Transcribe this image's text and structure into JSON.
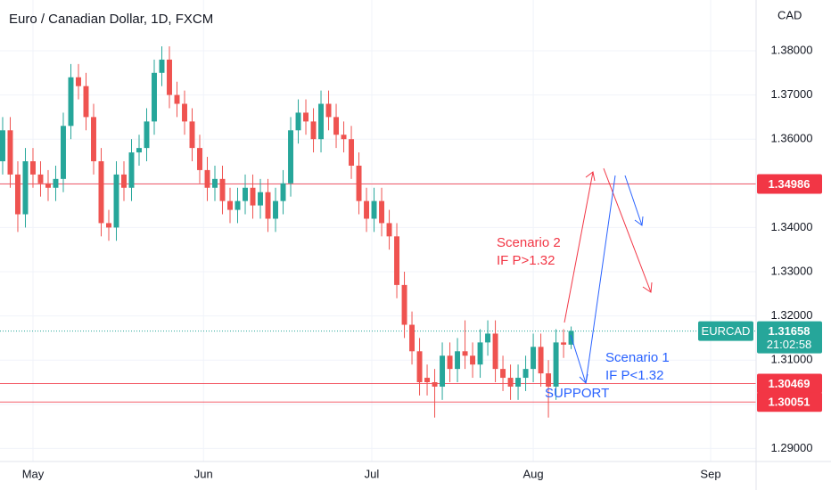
{
  "chart_data": {
    "type": "candlestick",
    "title": "Euro / Canadian Dollar, 1D, FXCM",
    "y_axis_label": "CAD",
    "up_color": "#26a69a",
    "down_color": "#ef5350",
    "grid": true,
    "xlim": [
      -0.35,
      99.4
    ],
    "xticks": [
      {
        "value": 4.0,
        "label": "May"
      },
      {
        "value": 26.5,
        "label": "Jun"
      },
      {
        "value": 48.7,
        "label": "Jul"
      },
      {
        "value": 70.0,
        "label": "Aug"
      },
      {
        "value": 93.4,
        "label": "Sep"
      }
    ],
    "ylim": [
      1.28706,
      1.39149
    ],
    "yticks": [
      {
        "value": 1.29,
        "label": "1.29000"
      },
      {
        "value": 1.3,
        "label": "1.30000"
      },
      {
        "value": 1.31,
        "label": "1.31000"
      },
      {
        "value": 1.32,
        "label": "1.32000"
      },
      {
        "value": 1.33,
        "label": "1.33000"
      },
      {
        "value": 1.34,
        "label": "1.34000"
      },
      {
        "value": 1.35,
        "label": "1.35000"
      },
      {
        "value": 1.36,
        "label": "1.36000"
      },
      {
        "value": 1.37,
        "label": "1.37000"
      },
      {
        "value": 1.38,
        "label": "1.38000"
      }
    ],
    "x": [
      0,
      1,
      2,
      3,
      4,
      5,
      6,
      7,
      8,
      9,
      10,
      11,
      12,
      13,
      14,
      15,
      16,
      17,
      18,
      19,
      20,
      21,
      22,
      23,
      24,
      25,
      26,
      27,
      28,
      29,
      30,
      31,
      32,
      33,
      34,
      35,
      36,
      37,
      38,
      39,
      40,
      41,
      42,
      43,
      44,
      45,
      46,
      47,
      48,
      49,
      50,
      51,
      52,
      53,
      54,
      55,
      56,
      57,
      58,
      59,
      60,
      61,
      62,
      63,
      64,
      65,
      66,
      67,
      68,
      69,
      70,
      71,
      72,
      73,
      74,
      75
    ],
    "open": [
      1.355,
      1.362,
      1.352,
      1.343,
      1.355,
      1.352,
      1.35,
      1.349,
      1.351,
      1.363,
      1.374,
      1.372,
      1.365,
      1.355,
      1.341,
      1.34,
      1.352,
      1.349,
      1.357,
      1.358,
      1.364,
      1.375,
      1.378,
      1.37,
      1.368,
      1.364,
      1.358,
      1.353,
      1.349,
      1.351,
      1.346,
      1.344,
      1.346,
      1.349,
      1.345,
      1.348,
      1.342,
      1.346,
      1.35,
      1.362,
      1.366,
      1.364,
      1.36,
      1.368,
      1.365,
      1.361,
      1.36,
      1.354,
      1.346,
      1.342,
      1.346,
      1.341,
      1.338,
      1.327,
      1.318,
      1.312,
      1.306,
      1.305,
      1.304,
      1.311,
      1.308,
      1.312,
      1.311,
      1.309,
      1.314,
      1.316,
      1.308,
      1.306,
      1.304,
      1.306,
      1.308,
      1.313,
      1.307,
      1.304,
      1.314,
      1.3135
    ],
    "high": [
      1.365,
      1.365,
      1.355,
      1.358,
      1.358,
      1.355,
      1.353,
      1.354,
      1.366,
      1.377,
      1.377,
      1.375,
      1.368,
      1.358,
      1.344,
      1.355,
      1.355,
      1.36,
      1.361,
      1.367,
      1.378,
      1.381,
      1.381,
      1.373,
      1.371,
      1.367,
      1.361,
      1.356,
      1.354,
      1.354,
      1.349,
      1.349,
      1.352,
      1.352,
      1.351,
      1.351,
      1.349,
      1.353,
      1.365,
      1.369,
      1.369,
      1.367,
      1.371,
      1.371,
      1.368,
      1.364,
      1.363,
      1.357,
      1.349,
      1.349,
      1.349,
      1.344,
      1.341,
      1.33,
      1.321,
      1.315,
      1.309,
      1.308,
      1.314,
      1.314,
      1.315,
      1.319,
      1.314,
      1.317,
      1.319,
      1.319,
      1.311,
      1.309,
      1.309,
      1.311,
      1.316,
      1.316,
      1.31,
      1.317,
      1.317,
      1.3176
    ],
    "low": [
      1.352,
      1.349,
      1.339,
      1.34,
      1.349,
      1.347,
      1.346,
      1.346,
      1.348,
      1.36,
      1.369,
      1.362,
      1.352,
      1.338,
      1.337,
      1.337,
      1.346,
      1.346,
      1.354,
      1.355,
      1.361,
      1.372,
      1.367,
      1.365,
      1.361,
      1.355,
      1.35,
      1.346,
      1.346,
      1.343,
      1.341,
      1.341,
      1.343,
      1.342,
      1.342,
      1.339,
      1.339,
      1.343,
      1.347,
      1.359,
      1.361,
      1.357,
      1.357,
      1.362,
      1.358,
      1.357,
      1.351,
      1.343,
      1.339,
      1.339,
      1.338,
      1.335,
      1.324,
      1.315,
      1.309,
      1.302,
      1.302,
      1.297,
      1.301,
      1.305,
      1.305,
      1.308,
      1.306,
      1.306,
      1.311,
      1.305,
      1.303,
      1.301,
      1.301,
      1.303,
      1.305,
      1.304,
      1.297,
      1.301,
      1.3105,
      1.3125
    ],
    "close": [
      1.362,
      1.352,
      1.343,
      1.355,
      1.352,
      1.35,
      1.349,
      1.351,
      1.363,
      1.374,
      1.372,
      1.365,
      1.355,
      1.341,
      1.34,
      1.352,
      1.349,
      1.357,
      1.358,
      1.364,
      1.375,
      1.378,
      1.37,
      1.368,
      1.364,
      1.358,
      1.353,
      1.349,
      1.351,
      1.346,
      1.344,
      1.346,
      1.349,
      1.345,
      1.348,
      1.342,
      1.346,
      1.35,
      1.362,
      1.366,
      1.364,
      1.36,
      1.368,
      1.365,
      1.361,
      1.36,
      1.354,
      1.346,
      1.342,
      1.346,
      1.341,
      1.338,
      1.327,
      1.318,
      1.312,
      1.305,
      1.305,
      1.304,
      1.311,
      1.308,
      1.312,
      1.311,
      1.309,
      1.314,
      1.316,
      1.308,
      1.306,
      1.304,
      1.306,
      1.308,
      1.313,
      1.307,
      1.304,
      1.314,
      1.3135,
      1.3166
    ],
    "level_color": "#f23645",
    "levels": [
      1.34986,
      1.30469,
      1.30051
    ],
    "last_price": {
      "symbol": "EURCAD",
      "value": 1.31658,
      "countdown": "21:02:58",
      "color": "#26a69a"
    },
    "annotations": [
      {
        "text": "Scenario 2",
        "color": "#f23645"
      },
      {
        "text": "IF P>1.32",
        "color": "#f23645"
      },
      {
        "text": "Scenario 1",
        "color": "#2962ff"
      },
      {
        "text": "IF P<1.32",
        "color": "#2962ff"
      },
      {
        "text": "SUPPORT",
        "color": "#2962ff"
      }
    ]
  }
}
